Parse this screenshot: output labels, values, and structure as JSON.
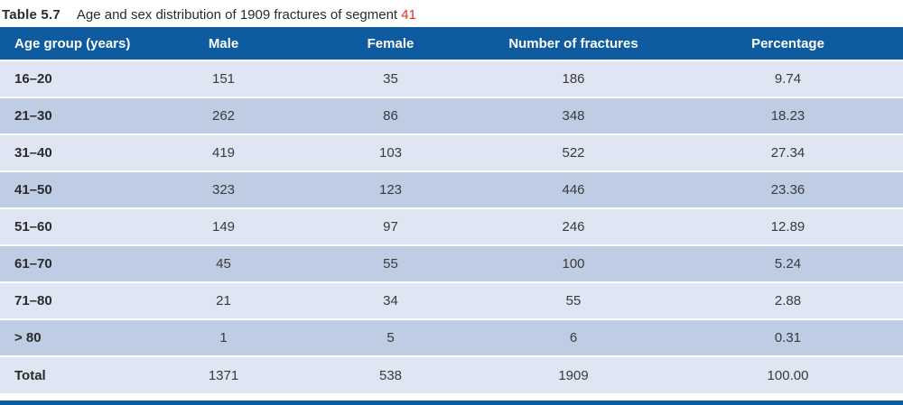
{
  "caption": {
    "label": "Table 5.7",
    "text": "Age and sex distribution of 1909 fractures of segment ",
    "highlight": "41"
  },
  "table": {
    "columns": [
      "Age group (years)",
      "Male",
      "Female",
      "Number of fractures",
      "Percentage"
    ],
    "rows": [
      [
        "16–20",
        "151",
        "35",
        "186",
        "9.74"
      ],
      [
        "21–30",
        "262",
        "86",
        "348",
        "18.23"
      ],
      [
        "31–40",
        "419",
        "103",
        "522",
        "27.34"
      ],
      [
        "41–50",
        "323",
        "123",
        "446",
        "23.36"
      ],
      [
        "51–60",
        "149",
        "97",
        "246",
        "12.89"
      ],
      [
        "61–70",
        "45",
        "55",
        "100",
        "5.24"
      ],
      [
        "71–80",
        "21",
        "34",
        "55",
        "2.88"
      ],
      [
        "> 80",
        "1",
        "5",
        "6",
        "0.31"
      ],
      [
        "Total",
        "1371",
        "538",
        "1909",
        "100.00"
      ]
    ]
  },
  "colors": {
    "header_bg": "#0e5c9f",
    "row_light": "#dfe5f2",
    "row_dark": "#bfcde4",
    "caption_highlight": "#e02f1f",
    "header_text": "#ffffff",
    "body_text": "#3a3a3a"
  }
}
